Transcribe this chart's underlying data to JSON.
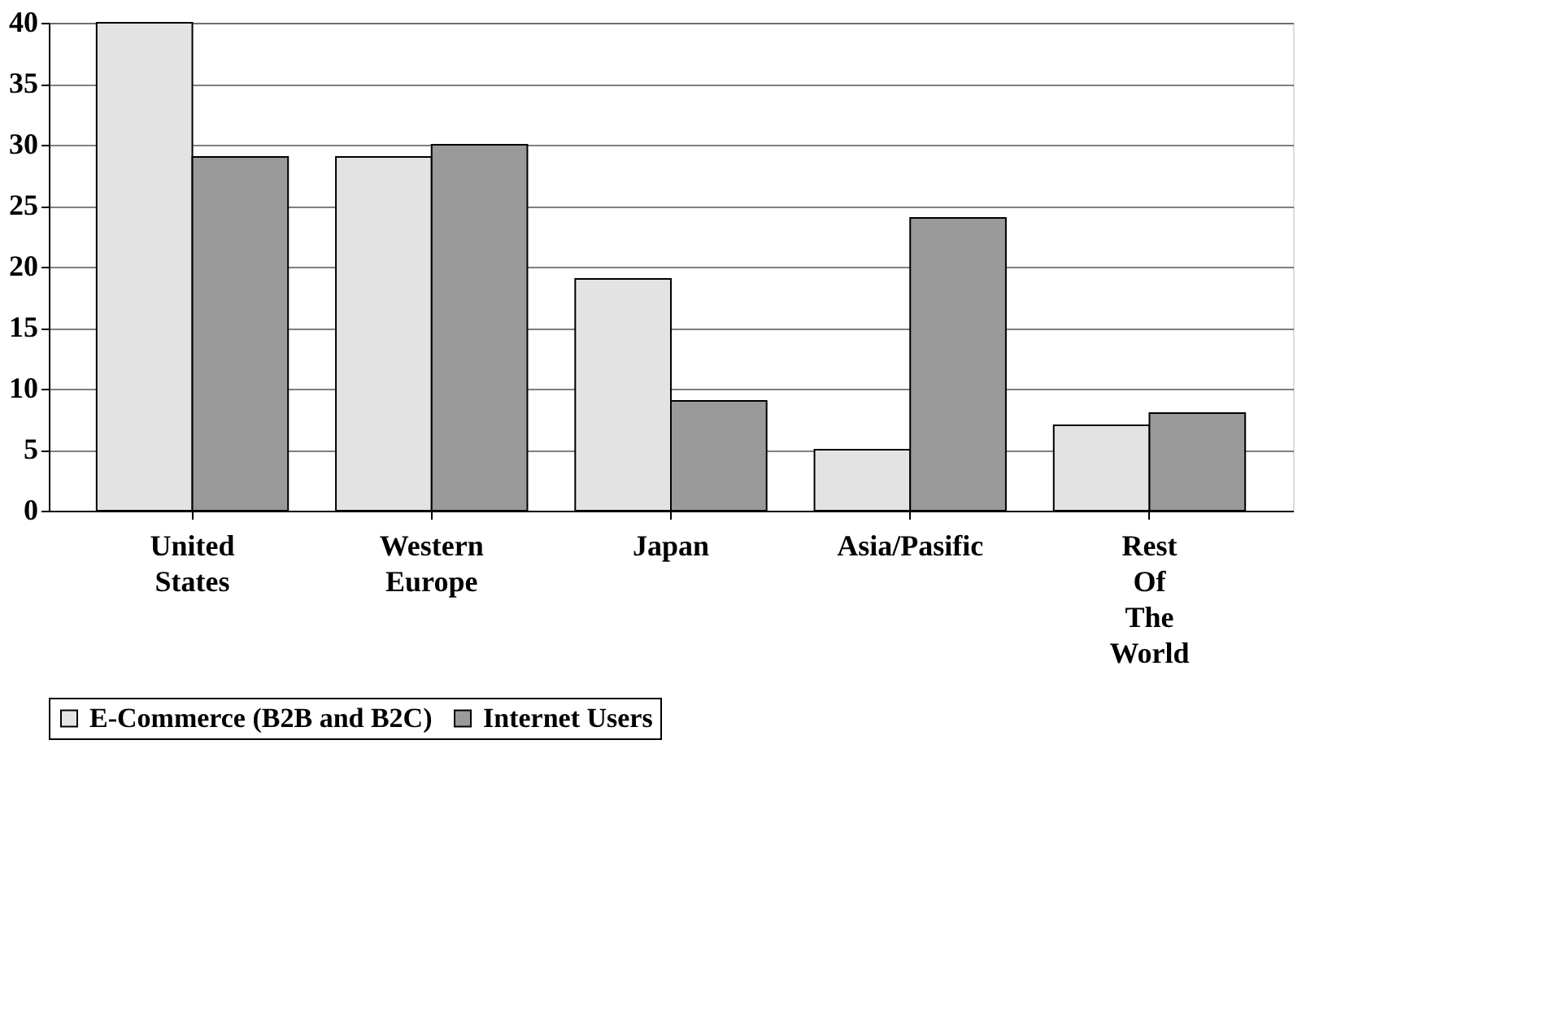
{
  "chart_data": {
    "type": "bar",
    "categories": [
      "United States",
      "Western Europe",
      "Japan",
      "Asia/Pasific",
      "Rest Of The World"
    ],
    "series": [
      {
        "name": "E-Commerce (B2B and B2C)",
        "color": "#e3e3e3",
        "values": [
          40,
          29,
          19,
          5,
          7
        ]
      },
      {
        "name": "Internet Users",
        "color": "#9a9a9a",
        "values": [
          29,
          30,
          9,
          24,
          8
        ]
      }
    ],
    "ylim": [
      0,
      40
    ],
    "yticks": [
      0,
      5,
      10,
      15,
      20,
      25,
      30,
      35,
      40
    ],
    "grid": "y",
    "legend": "bottom"
  }
}
